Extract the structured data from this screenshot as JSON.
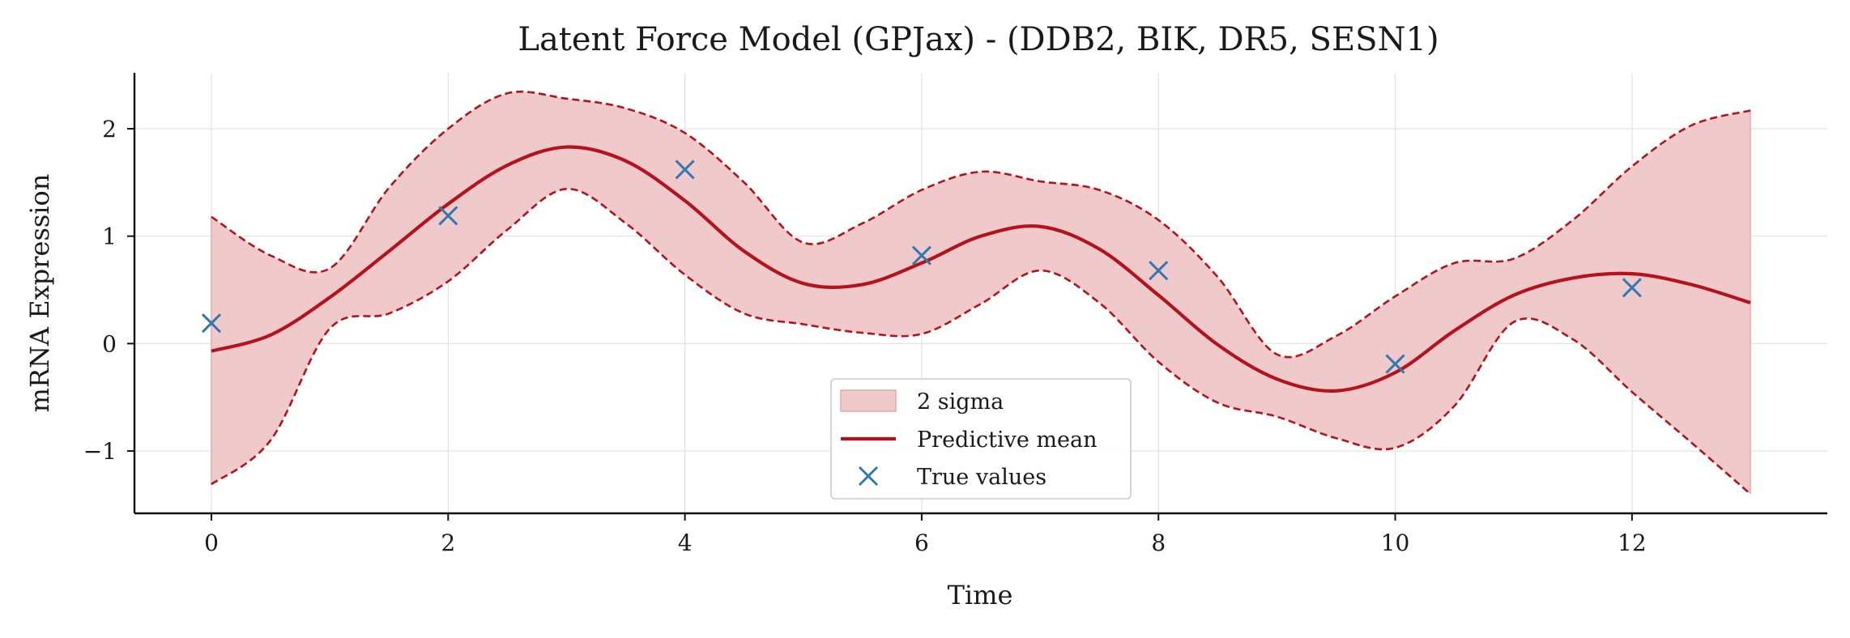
{
  "chart_data": {
    "type": "line",
    "title": "Latent Force Model (GPJax) - (DDB2, BIK, DR5, SESN1)",
    "xlabel": "Time",
    "ylabel": "mRNA Expression",
    "xlim": [
      -0.65,
      13.65
    ],
    "ylim": [
      -1.58,
      2.52
    ],
    "xticks": [
      0,
      2,
      4,
      6,
      8,
      10,
      12
    ],
    "yticks": [
      -1,
      0,
      1,
      2
    ],
    "x_tick_labels": [
      "0",
      "2",
      "4",
      "6",
      "8",
      "10",
      "12"
    ],
    "y_tick_labels": [
      "−1",
      "0",
      "1",
      "2"
    ],
    "grid": true,
    "legend_position": "bottom-center",
    "series": [
      {
        "name": "Predictive mean",
        "kind": "line",
        "color": "#b5121b",
        "x": [
          0,
          0.5,
          1,
          1.5,
          2,
          2.5,
          3,
          3.5,
          4,
          4.5,
          5,
          5.5,
          6,
          6.5,
          7,
          7.5,
          8,
          8.5,
          9,
          9.5,
          10,
          10.5,
          11,
          11.5,
          12,
          12.5,
          13
        ],
        "y": [
          -0.07,
          0.08,
          0.43,
          0.86,
          1.3,
          1.66,
          1.83,
          1.7,
          1.33,
          0.86,
          0.56,
          0.55,
          0.75,
          1.0,
          1.09,
          0.88,
          0.45,
          -0.01,
          -0.33,
          -0.44,
          -0.27,
          0.12,
          0.45,
          0.61,
          0.65,
          0.55,
          0.38
        ]
      },
      {
        "name": "2 sigma",
        "kind": "band",
        "color": "#b5121b",
        "fill_color": "#f0c9cb",
        "x": [
          0,
          0.5,
          1,
          1.5,
          2,
          2.5,
          3,
          3.5,
          4,
          4.5,
          5,
          5.5,
          6,
          6.5,
          7,
          7.5,
          8,
          8.5,
          9,
          9.5,
          10,
          10.5,
          11,
          11.5,
          12,
          12.5,
          13
        ],
        "upper": [
          1.18,
          0.82,
          0.7,
          1.45,
          2.0,
          2.33,
          2.28,
          2.19,
          1.96,
          1.5,
          0.94,
          1.12,
          1.43,
          1.6,
          1.51,
          1.43,
          1.15,
          0.62,
          -0.1,
          0.07,
          0.44,
          0.75,
          0.79,
          1.15,
          1.65,
          2.03,
          2.17
        ],
        "lower": [
          -1.31,
          -0.9,
          0.14,
          0.28,
          0.58,
          1.06,
          1.44,
          1.12,
          0.64,
          0.28,
          0.18,
          0.1,
          0.09,
          0.37,
          0.68,
          0.38,
          -0.17,
          -0.55,
          -0.68,
          -0.88,
          -0.97,
          -0.58,
          0.2,
          0.04,
          -0.45,
          -0.92,
          -1.4
        ]
      },
      {
        "name": "True values",
        "kind": "scatter",
        "marker": "x",
        "color": "#2f78b1",
        "x": [
          0,
          2,
          4,
          6,
          8,
          10,
          12
        ],
        "y": [
          0.19,
          1.19,
          1.62,
          0.82,
          0.68,
          -0.19,
          0.52
        ]
      }
    ]
  }
}
